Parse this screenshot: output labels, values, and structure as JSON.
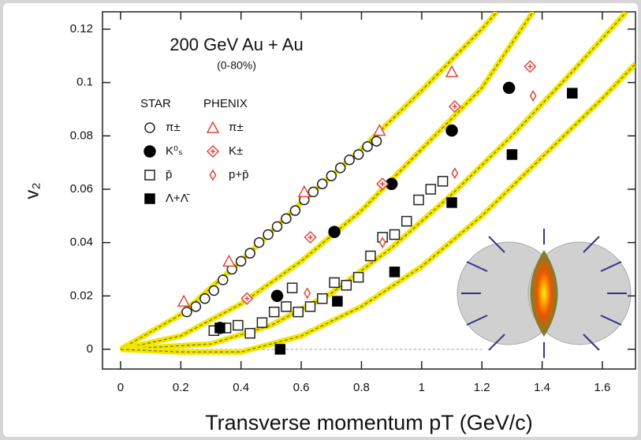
{
  "chart_data": {
    "type": "scatter",
    "title": "200 GeV Au + Au",
    "subtitle": "(0-80%)",
    "xlabel": "Transverse momentum pT (GeV/c)",
    "ylabel": "v₂",
    "xlim": [
      -0.06,
      1.71
    ],
    "ylim": [
      -0.0074,
      0.1265
    ],
    "xticks": [
      0,
      0.2,
      0.4,
      0.6,
      0.8,
      1,
      1.2,
      1.4,
      1.6
    ],
    "yticks": [
      0,
      0.02,
      0.04,
      0.06,
      0.08,
      0.1,
      0.12
    ],
    "legend_groups": [
      "STAR",
      "PHENIX"
    ],
    "series": [
      {
        "name": "π±",
        "group": 0,
        "marker": "circle-open",
        "color": "#222222",
        "x": [
          0.22,
          0.25,
          0.28,
          0.31,
          0.34,
          0.37,
          0.4,
          0.43,
          0.46,
          0.49,
          0.52,
          0.55,
          0.58,
          0.61,
          0.64,
          0.67,
          0.7,
          0.73,
          0.76,
          0.79,
          0.82,
          0.85
        ],
        "values": [
          0.014,
          0.016,
          0.019,
          0.022,
          0.026,
          0.03,
          0.033,
          0.036,
          0.04,
          0.043,
          0.046,
          0.049,
          0.052,
          0.056,
          0.059,
          0.062,
          0.065,
          0.068,
          0.071,
          0.073,
          0.076,
          0.078
        ]
      },
      {
        "name": "K⁰ₛ",
        "group": 0,
        "marker": "circle-filled",
        "color": "#000000",
        "x": [
          0.33,
          0.52,
          0.71,
          0.9,
          1.1,
          1.29
        ],
        "values": [
          0.008,
          0.02,
          0.044,
          0.062,
          0.082,
          0.098
        ]
      },
      {
        "name": "p̄",
        "group": 0,
        "marker": "square-open",
        "color": "#222222",
        "x": [
          0.31,
          0.35,
          0.39,
          0.43,
          0.47,
          0.51,
          0.55,
          0.57,
          0.59,
          0.63,
          0.67,
          0.71,
          0.75,
          0.79,
          0.83,
          0.87,
          0.91,
          0.95,
          0.99,
          1.03,
          1.07
        ],
        "values": [
          0.007,
          0.008,
          0.009,
          0.006,
          0.01,
          0.014,
          0.016,
          0.023,
          0.014,
          0.016,
          0.019,
          0.025,
          0.024,
          0.027,
          0.035,
          0.042,
          0.043,
          0.048,
          0.056,
          0.06,
          0.063
        ]
      },
      {
        "name": "Λ+Λ̄",
        "group": 0,
        "marker": "square-filled",
        "color": "#000000",
        "x": [
          0.33,
          0.53,
          0.72,
          0.91,
          1.1,
          1.3,
          1.5
        ],
        "values": [
          0.008,
          0.0,
          0.018,
          0.029,
          0.055,
          0.073,
          0.096
        ]
      },
      {
        "name": "π±",
        "group": 1,
        "marker": "triangle-open",
        "color": "#e0453a",
        "x": [
          0.21,
          0.36,
          0.61,
          0.86,
          1.1
        ],
        "values": [
          0.018,
          0.033,
          0.059,
          0.082,
          0.104
        ]
      },
      {
        "name": "K±",
        "group": 1,
        "marker": "diamond-cross",
        "color": "#e0453a",
        "x": [
          0.42,
          0.63,
          0.87,
          1.11,
          1.36
        ],
        "values": [
          0.019,
          0.042,
          0.062,
          0.091,
          0.106
        ]
      },
      {
        "name": "p+p̄",
        "group": 1,
        "marker": "diamond-open",
        "color": "#e0453a",
        "x": [
          0.62,
          0.87,
          1.11,
          1.37
        ],
        "values": [
          0.021,
          0.04,
          0.066,
          0.095
        ]
      }
    ],
    "fits": [
      {
        "x": [
          0,
          0.2,
          0.4,
          0.6,
          0.8,
          1.0,
          1.2,
          1.25
        ],
        "values": [
          0,
          0.013,
          0.033,
          0.055,
          0.075,
          0.097,
          0.12,
          0.1265
        ]
      },
      {
        "x": [
          0,
          0.2,
          0.4,
          0.6,
          0.8,
          1.0,
          1.2,
          1.37
        ],
        "values": [
          0,
          0.005,
          0.017,
          0.033,
          0.052,
          0.075,
          0.098,
          0.1265
        ]
      },
      {
        "x": [
          0,
          0.3,
          0.5,
          0.7,
          0.9,
          1.1,
          1.3,
          1.5,
          1.68
        ],
        "values": [
          0,
          0.002,
          0.009,
          0.021,
          0.038,
          0.058,
          0.08,
          0.104,
          0.1265
        ]
      },
      {
        "x": [
          0,
          0.2,
          0.4,
          0.6,
          0.8,
          1.0,
          1.2,
          1.4,
          1.6,
          1.71
        ],
        "values": [
          0,
          -0.001,
          -0.001,
          0.005,
          0.016,
          0.031,
          0.05,
          0.072,
          0.094,
          0.107
        ]
      }
    ]
  }
}
